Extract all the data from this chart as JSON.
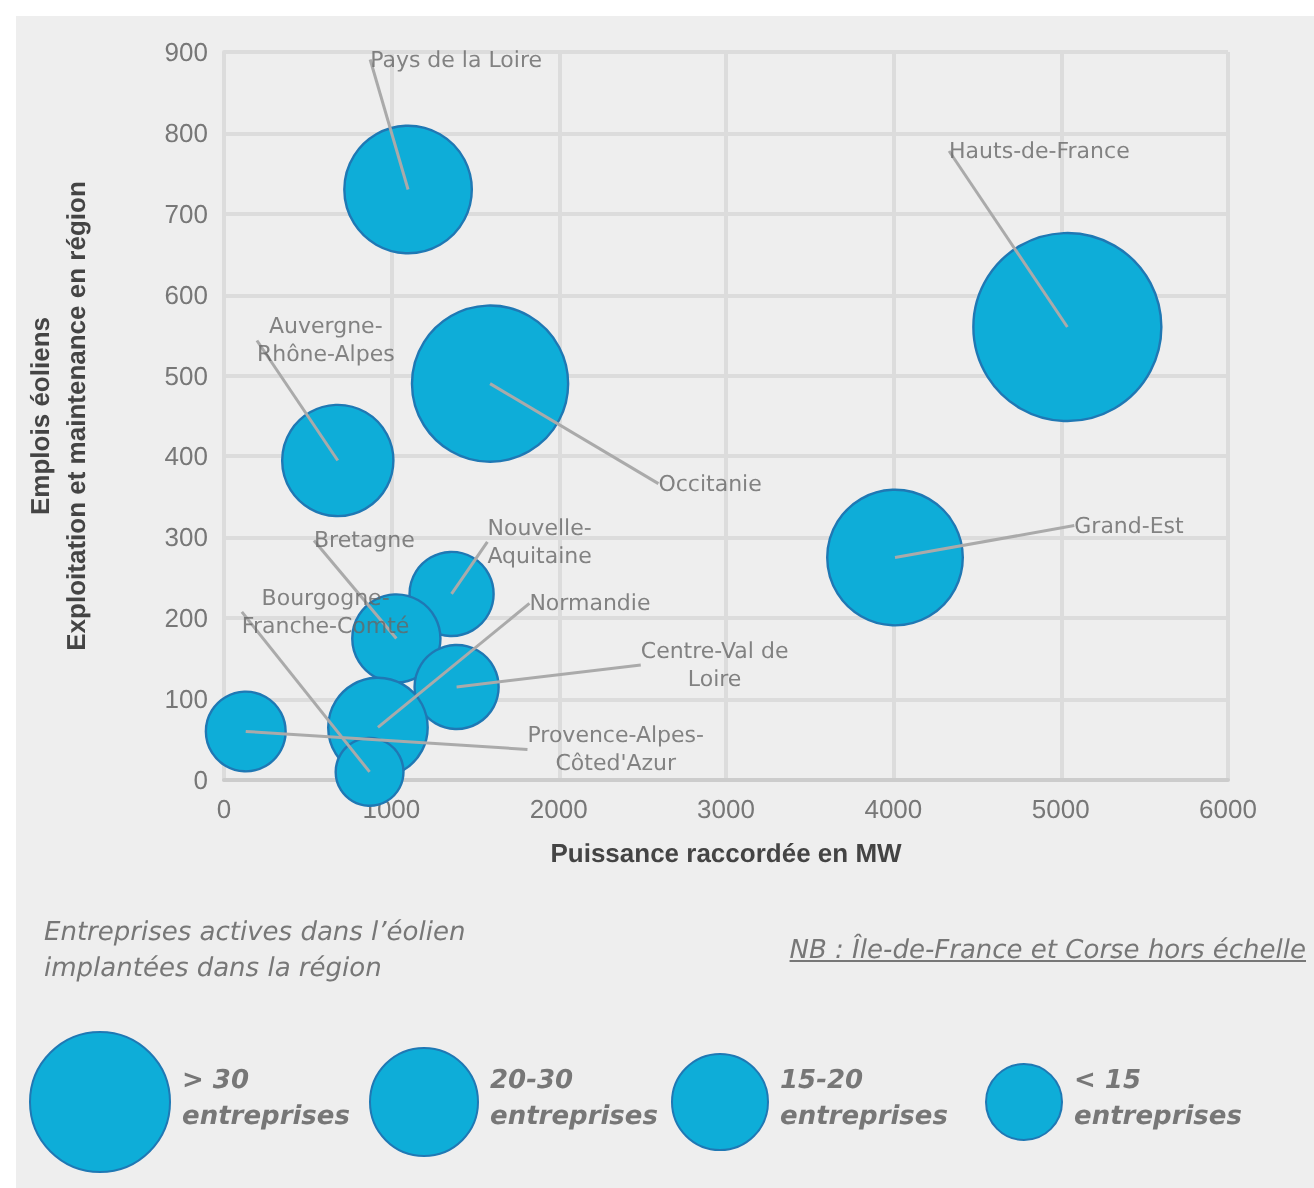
{
  "chart_data": {
    "type": "bubble",
    "xlabel": "Puissance raccordée en MW",
    "ylabel": "Emplois éoliens\nExploitation et maintenance en région",
    "x": [
      1100,
      5040,
      1590,
      680,
      4010,
      1360,
      1030,
      1390,
      920,
      130,
      870
    ],
    "values": [
      730,
      560,
      490,
      395,
      275,
      230,
      175,
      115,
      65,
      60,
      10
    ],
    "sizes": [
      0.46,
      1,
      0.69,
      0.35,
      0.52,
      0.2,
      0.22,
      0.2,
      0.28,
      0.18,
      0.13
    ],
    "color": "#0eadd8",
    "xlim": [
      0,
      6000
    ],
    "xticks": [
      0,
      1000,
      2000,
      3000,
      4000,
      5000,
      6000
    ],
    "ylim": [
      0,
      900
    ],
    "yticks": [
      0,
      100,
      200,
      300,
      400,
      500,
      600,
      700,
      800,
      900
    ],
    "grid": true,
    "annotations": [
      {
        "text": "Pays de la Loire",
        "x": 1100,
        "y": 730
      },
      {
        "text": "Hauts-de-France",
        "x": 5040,
        "y": 560
      },
      {
        "text": "Occitanie",
        "x": 1590,
        "y": 490
      },
      {
        "text": "Auvergne-\nRhône-Alpes",
        "x": 680,
        "y": 395
      },
      {
        "text": "Grand-Est",
        "x": 4010,
        "y": 275
      },
      {
        "text": "Nouvelle-\nAquitaine",
        "x": 1360,
        "y": 230
      },
      {
        "text": "Bretagne",
        "x": 1030,
        "y": 175
      },
      {
        "text": "Centre-Val de\nLoire",
        "x": 1390,
        "y": 115
      },
      {
        "text": "Normandie",
        "x": 920,
        "y": 65
      },
      {
        "text": "Provence-Alpes-\nCôted'Azur",
        "x": 130,
        "y": 60
      },
      {
        "text": "Bourgogne-\nFranche-Comté",
        "x": 870,
        "y": 10
      },
      "Entreprises actives dans l’éolien implantées dans la région",
      "NB : Île-de-France et Corse hors échelle",
      "> 30 entreprises",
      "20-30 entreprises",
      "15-20 entreprises",
      "< 15 entreprises"
    ]
  }
}
